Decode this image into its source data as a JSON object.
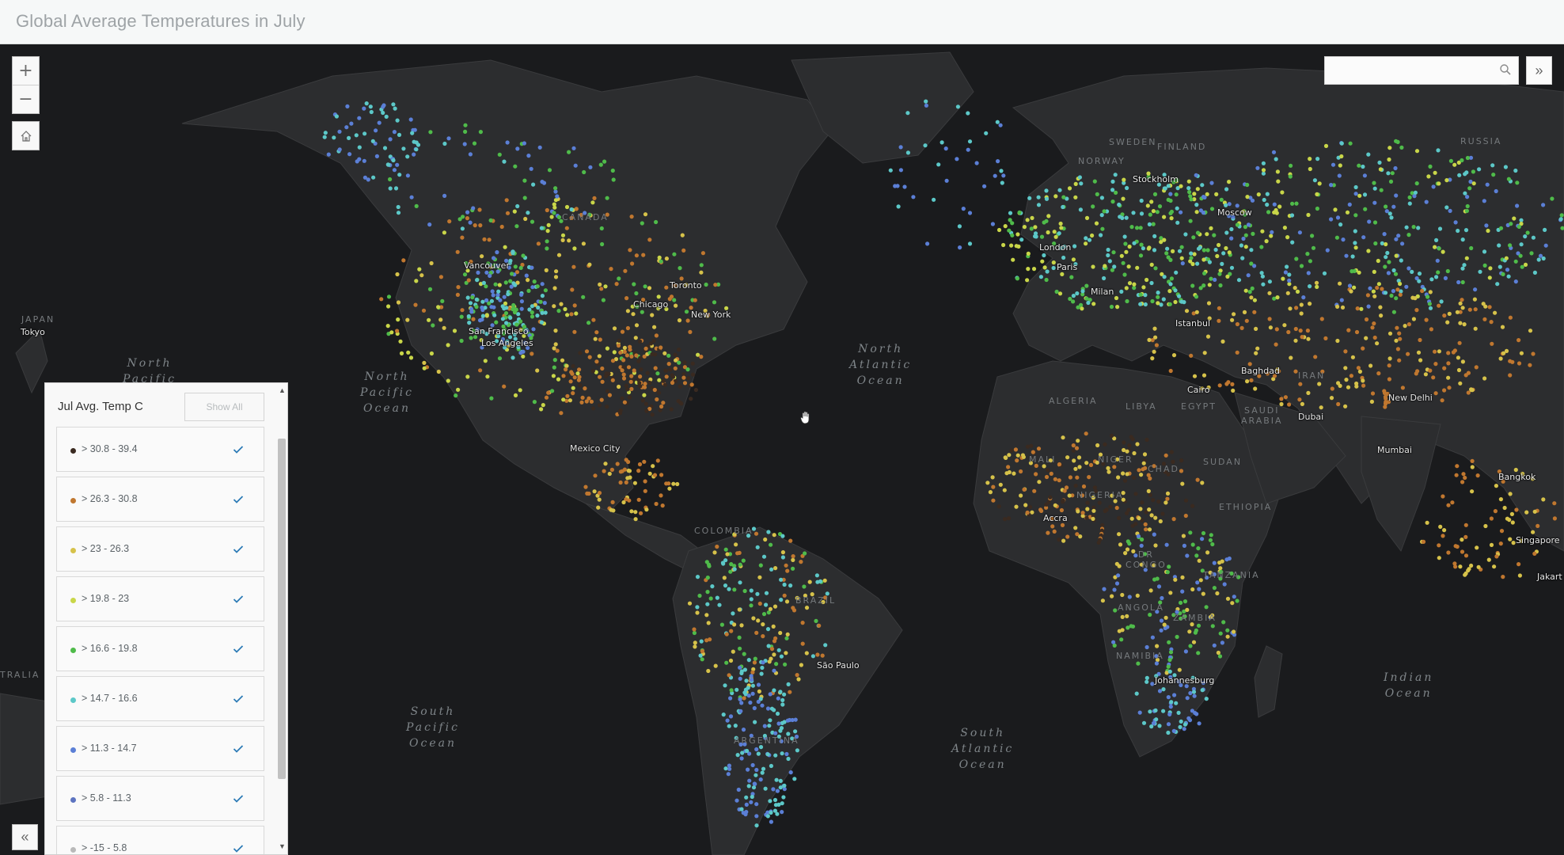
{
  "header": {
    "title": "Global Average Temperatures in July"
  },
  "controls": {
    "zoom_in_label": "+",
    "zoom_out_label": "−",
    "home_icon": "home-icon",
    "search_placeholder": "",
    "search_icon": "search-icon",
    "expand_label": "»",
    "collapse_label": "«"
  },
  "legend": {
    "title": "Jul Avg. Temp C",
    "show_all_label": "Show All",
    "items": [
      {
        "label": "> 30.8 - 39.4",
        "color": "#3a2a20"
      },
      {
        "label": "> 26.3 - 30.8",
        "color": "#c0772f"
      },
      {
        "label": "> 23 - 26.3",
        "color": "#d6c24a"
      },
      {
        "label": "> 19.8 - 23",
        "color": "#c9d649"
      },
      {
        "label": "> 16.6 - 19.8",
        "color": "#4fbb4a"
      },
      {
        "label": "> 14.7 - 16.6",
        "color": "#5cc8c8"
      },
      {
        "label": "> 11.3 - 14.7",
        "color": "#5b7fd6"
      },
      {
        "label": "> 5.8 - 11.3",
        "color": "#5d74c0"
      },
      {
        "label": "> -15 - 5.8",
        "color": "#b9b9b9"
      }
    ]
  },
  "map": {
    "ocean_labels": [
      {
        "text": "North\nPacific"
      },
      {
        "text": "North\nPacific\nOcean"
      },
      {
        "text": "North\nAtlantic\nOcean"
      },
      {
        "text": "South\nPacific\nOcean"
      },
      {
        "text": "South\nAtlantic\nOcean"
      },
      {
        "text": "Indian\nOcean"
      }
    ],
    "country_labels": [
      "CANADA",
      "BRAZIL",
      "RUSSIA",
      "ALGERIA",
      "LIBYA",
      "EGYPT",
      "MALI",
      "NIGER",
      "CHAD",
      "SUDAN",
      "NIGERIA",
      "ETHIOPIA",
      "ANGOLA",
      "ZAMBIA",
      "NAMIBIA",
      "SAUDI\nARABIA",
      "IRAN",
      "COLOMBIA",
      "ARGENTINA",
      "DR\nCONGO",
      "TANZANIA",
      "JAPAN",
      "SWEDEN",
      "NORWAY",
      "FINLAND",
      "TRALIA"
    ],
    "city_labels": [
      "Vancouver",
      "San Francisco",
      "Los Angeles",
      "Chicago",
      "Toronto",
      "New York",
      "Mexico City",
      "São Paulo",
      "London",
      "Paris",
      "Milan",
      "Stockholm",
      "Moscow",
      "Istanbul",
      "Cairo",
      "Baghdad",
      "Dubai",
      "New Delhi",
      "Mumbai",
      "Bangkok",
      "Singapore",
      "Jakart",
      "Accra",
      "Johannesburg",
      "Tokyo"
    ]
  }
}
